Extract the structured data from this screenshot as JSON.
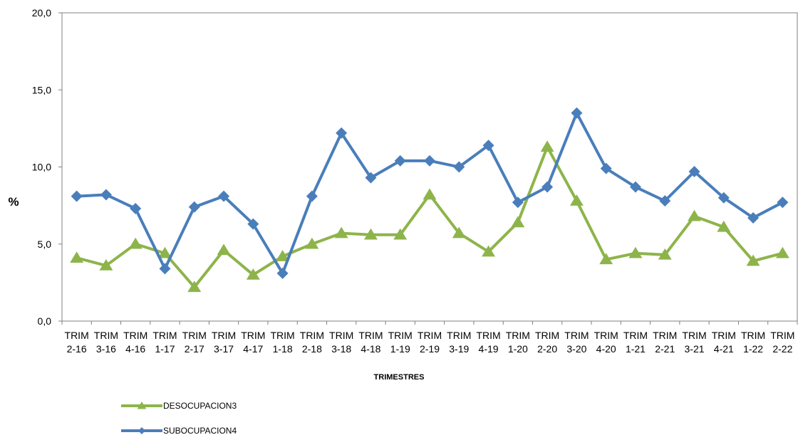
{
  "chart_data": {
    "type": "line",
    "categories": [
      [
        "TRIM",
        "2-16"
      ],
      [
        "TRIM",
        "3-16"
      ],
      [
        "TRIM",
        "4-16"
      ],
      [
        "TRIM",
        "1-17"
      ],
      [
        "TRIM",
        "2-17"
      ],
      [
        "TRIM",
        "3-17"
      ],
      [
        "TRIM",
        "4-17"
      ],
      [
        "TRIM",
        "1-18"
      ],
      [
        "TRIM",
        "2-18"
      ],
      [
        "TRIM",
        "3-18"
      ],
      [
        "TRIM",
        "4-18"
      ],
      [
        "TRIM",
        "1-19"
      ],
      [
        "TRIM",
        "2-19"
      ],
      [
        "TRIM",
        "3-19"
      ],
      [
        "TRIM",
        "4-19"
      ],
      [
        "TRIM",
        "1-20"
      ],
      [
        "TRIM",
        "2-20"
      ],
      [
        "TRIM",
        "3-20"
      ],
      [
        "TRIM",
        "4-20"
      ],
      [
        "TRIM",
        "1-21"
      ],
      [
        "TRIM",
        "2-21"
      ],
      [
        "TRIM",
        "3-21"
      ],
      [
        "TRIM",
        "4-21"
      ],
      [
        "TRIM",
        "1-22"
      ],
      [
        "TRIM",
        "2-22"
      ]
    ],
    "series": [
      {
        "name": "DESOCUPACION3",
        "color": "#8DB44A",
        "marker": "triangle",
        "values": [
          4.1,
          3.6,
          5.0,
          4.4,
          2.2,
          4.6,
          3.0,
          4.2,
          5.0,
          5.7,
          5.6,
          5.6,
          8.2,
          5.7,
          4.5,
          6.4,
          11.3,
          7.8,
          4.0,
          4.4,
          4.3,
          6.8,
          6.1,
          3.9,
          4.4
        ]
      },
      {
        "name": "SUBOCUPACION4",
        "color": "#4A7EBB",
        "marker": "diamond",
        "values": [
          8.1,
          8.2,
          7.3,
          3.4,
          7.4,
          8.1,
          6.3,
          3.1,
          8.1,
          12.2,
          9.3,
          10.4,
          10.4,
          10.0,
          11.4,
          7.7,
          8.7,
          13.5,
          9.9,
          8.7,
          7.8,
          9.7,
          8.0,
          6.7,
          7.7
        ]
      }
    ],
    "xlabel": "TRIMESTRES",
    "ylabel": "%",
    "ylim": [
      0,
      20
    ],
    "yticks": [
      "0,0",
      "5,0",
      "10,0",
      "15,0",
      "20,0"
    ],
    "legend_position": "bottom-left",
    "grid": false
  }
}
